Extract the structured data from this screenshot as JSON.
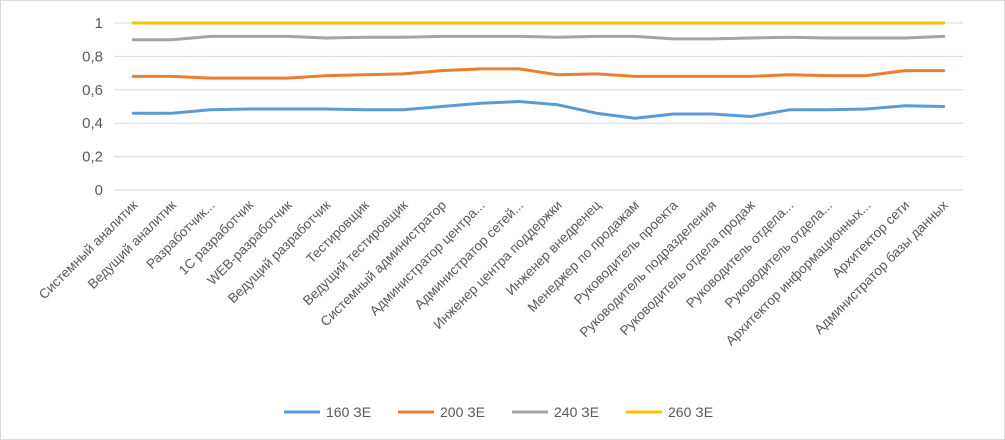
{
  "chart_data": {
    "type": "line",
    "title": "",
    "xlabel": "",
    "ylabel": "",
    "ylim": [
      0,
      1
    ],
    "yticks": [
      "0",
      "0,2",
      "0,4",
      "0,6",
      "0,8",
      "1"
    ],
    "grid": true,
    "legend_position": "bottom",
    "categories": [
      "Системный аналитик",
      "Ведущий аналитик",
      "Разработчик...",
      "1С разработчик",
      "WEB-разработчик",
      "Ведущий разработчик",
      "Тестировщик",
      "Ведущий тестировщик",
      "Системный администратор",
      "Администратор центра...",
      "Администратор сетей...",
      "Инженер центра поддержки",
      "Инженер внедренец",
      "Менеджер по продажам",
      "Руководитель проекта",
      "Руководитель подразделения",
      "Руководитель отдела продаж",
      "Руководитель отдела...",
      "Руководитель отдела...",
      "Архитектор информационных...",
      "Архитектор сети",
      "Администратор базы данных"
    ],
    "series": [
      {
        "name": "160 ЗЕ",
        "color": "#5b9bd5",
        "values": [
          0.46,
          0.46,
          0.48,
          0.485,
          0.485,
          0.485,
          0.48,
          0.48,
          0.5,
          0.52,
          0.53,
          0.51,
          0.46,
          0.43,
          0.455,
          0.455,
          0.44,
          0.48,
          0.48,
          0.485,
          0.505,
          0.5
        ]
      },
      {
        "name": "200 ЗЕ",
        "color": "#ed7d31",
        "values": [
          0.68,
          0.68,
          0.67,
          0.67,
          0.67,
          0.685,
          0.69,
          0.695,
          0.715,
          0.725,
          0.725,
          0.69,
          0.695,
          0.68,
          0.68,
          0.68,
          0.68,
          0.69,
          0.685,
          0.685,
          0.715,
          0.715
        ]
      },
      {
        "name": "240 ЗЕ",
        "color": "#a5a5a5",
        "values": [
          0.9,
          0.9,
          0.92,
          0.92,
          0.92,
          0.91,
          0.915,
          0.915,
          0.92,
          0.92,
          0.92,
          0.915,
          0.92,
          0.92,
          0.905,
          0.905,
          0.91,
          0.915,
          0.91,
          0.91,
          0.91,
          0.92
        ]
      },
      {
        "name": "260 ЗЕ",
        "color": "#ffc000",
        "values": [
          1,
          1,
          1,
          1,
          1,
          1,
          1,
          1,
          1,
          1,
          1,
          1,
          1,
          1,
          1,
          1,
          1,
          1,
          1,
          1,
          1,
          1
        ]
      }
    ]
  }
}
